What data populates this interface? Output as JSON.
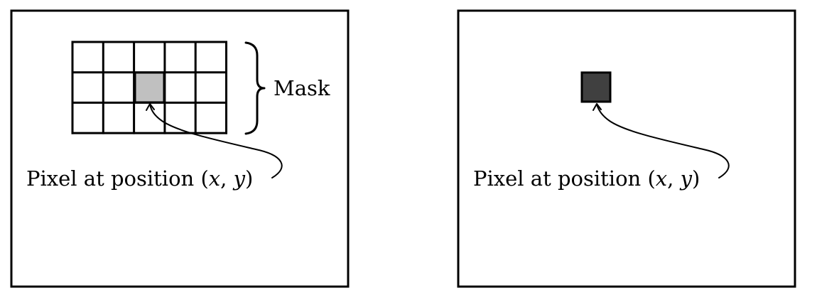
{
  "left_panel": {
    "mask_label": "Mask",
    "pixel_label_prefix": "Pixel at position ",
    "pixel_label_open": "(",
    "pixel_label_x": "x",
    "pixel_label_sep": ", ",
    "pixel_label_y": "y",
    "pixel_label_close": ")",
    "mask_grid": {
      "rows": 3,
      "cols": 5,
      "highlight_row": 1,
      "highlight_col": 2
    }
  },
  "right_panel": {
    "pixel_label_prefix": "Pixel at position ",
    "pixel_label_open": "(",
    "pixel_label_x": "x",
    "pixel_label_sep": ", ",
    "pixel_label_y": "y",
    "pixel_label_close": ")"
  },
  "colors": {
    "stroke": "#000000",
    "mask_center_pixel": "#c0c0c0",
    "output_pixel": "#404040"
  }
}
